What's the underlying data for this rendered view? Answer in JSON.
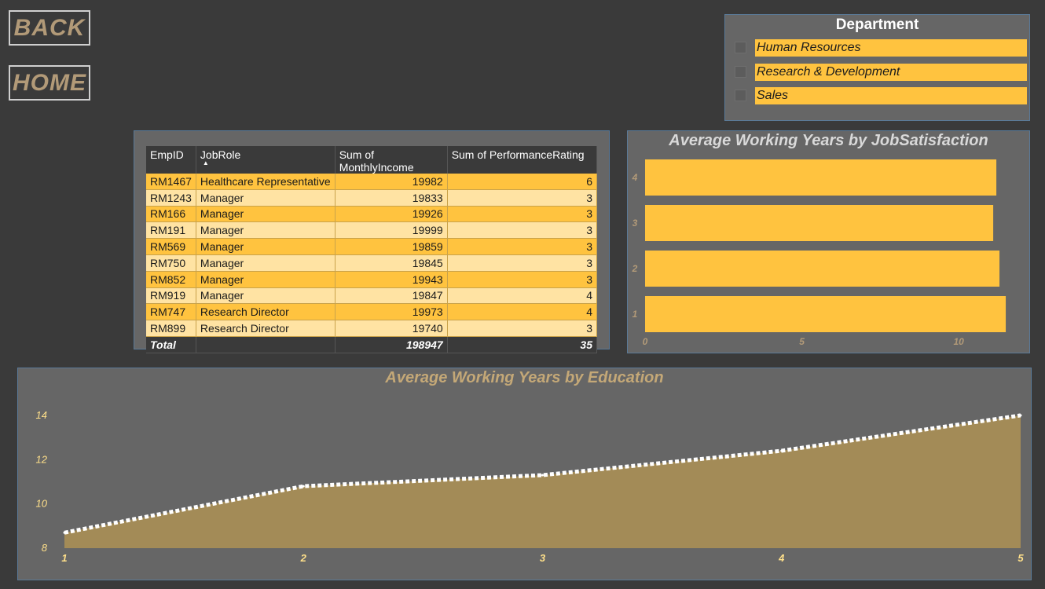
{
  "nav": {
    "back_label": "BACK",
    "home_label": "HOME"
  },
  "slicer": {
    "title": "Department",
    "items": [
      {
        "label": "Human Resources"
      },
      {
        "label": "Research & Development"
      },
      {
        "label": "Sales"
      }
    ]
  },
  "table": {
    "headers": [
      "EmpID",
      "JobRole",
      "Sum of MonthlyIncome",
      "Sum of PerformanceRating"
    ],
    "sort_column": "JobRole",
    "rows": [
      [
        "RM1467",
        "Healthcare Representative",
        "19982",
        "6"
      ],
      [
        "RM1243",
        "Manager",
        "19833",
        "3"
      ],
      [
        "RM166",
        "Manager",
        "19926",
        "3"
      ],
      [
        "RM191",
        "Manager",
        "19999",
        "3"
      ],
      [
        "RM569",
        "Manager",
        "19859",
        "3"
      ],
      [
        "RM750",
        "Manager",
        "19845",
        "3"
      ],
      [
        "RM852",
        "Manager",
        "19943",
        "3"
      ],
      [
        "RM919",
        "Manager",
        "19847",
        "4"
      ],
      [
        "RM747",
        "Research Director",
        "19973",
        "4"
      ],
      [
        "RM899",
        "Research Director",
        "19740",
        "3"
      ]
    ],
    "total": [
      "Total",
      "",
      "198947",
      "35"
    ]
  },
  "colors": {
    "accent": "#ffc33f",
    "accent_light": "#ffe3a3",
    "area_fill": "#a38b57",
    "title_tan": "#c4a877",
    "panel_bg": "#666666",
    "page_bg": "#3a3a3a"
  },
  "chart_data": [
    {
      "type": "bar",
      "orientation": "horizontal",
      "title": "Average Working Years by JobSatisfaction",
      "categories": [
        "4",
        "3",
        "2",
        "1"
      ],
      "values": [
        11.2,
        11.1,
        11.3,
        11.5
      ],
      "xlim": [
        0,
        12.2
      ],
      "xticks": [
        "0",
        "5",
        "10"
      ],
      "grid": false
    },
    {
      "type": "area",
      "title": "Average Working Years by Education",
      "x": [
        1,
        2,
        3,
        4,
        5
      ],
      "y": [
        8.7,
        10.8,
        11.3,
        12.4,
        14.0
      ],
      "xticks": [
        "1",
        "2",
        "3",
        "4",
        "5"
      ],
      "yticks": [
        "8",
        "10",
        "12",
        "14"
      ],
      "ylim": [
        8,
        14.6
      ],
      "grid": false
    }
  ]
}
